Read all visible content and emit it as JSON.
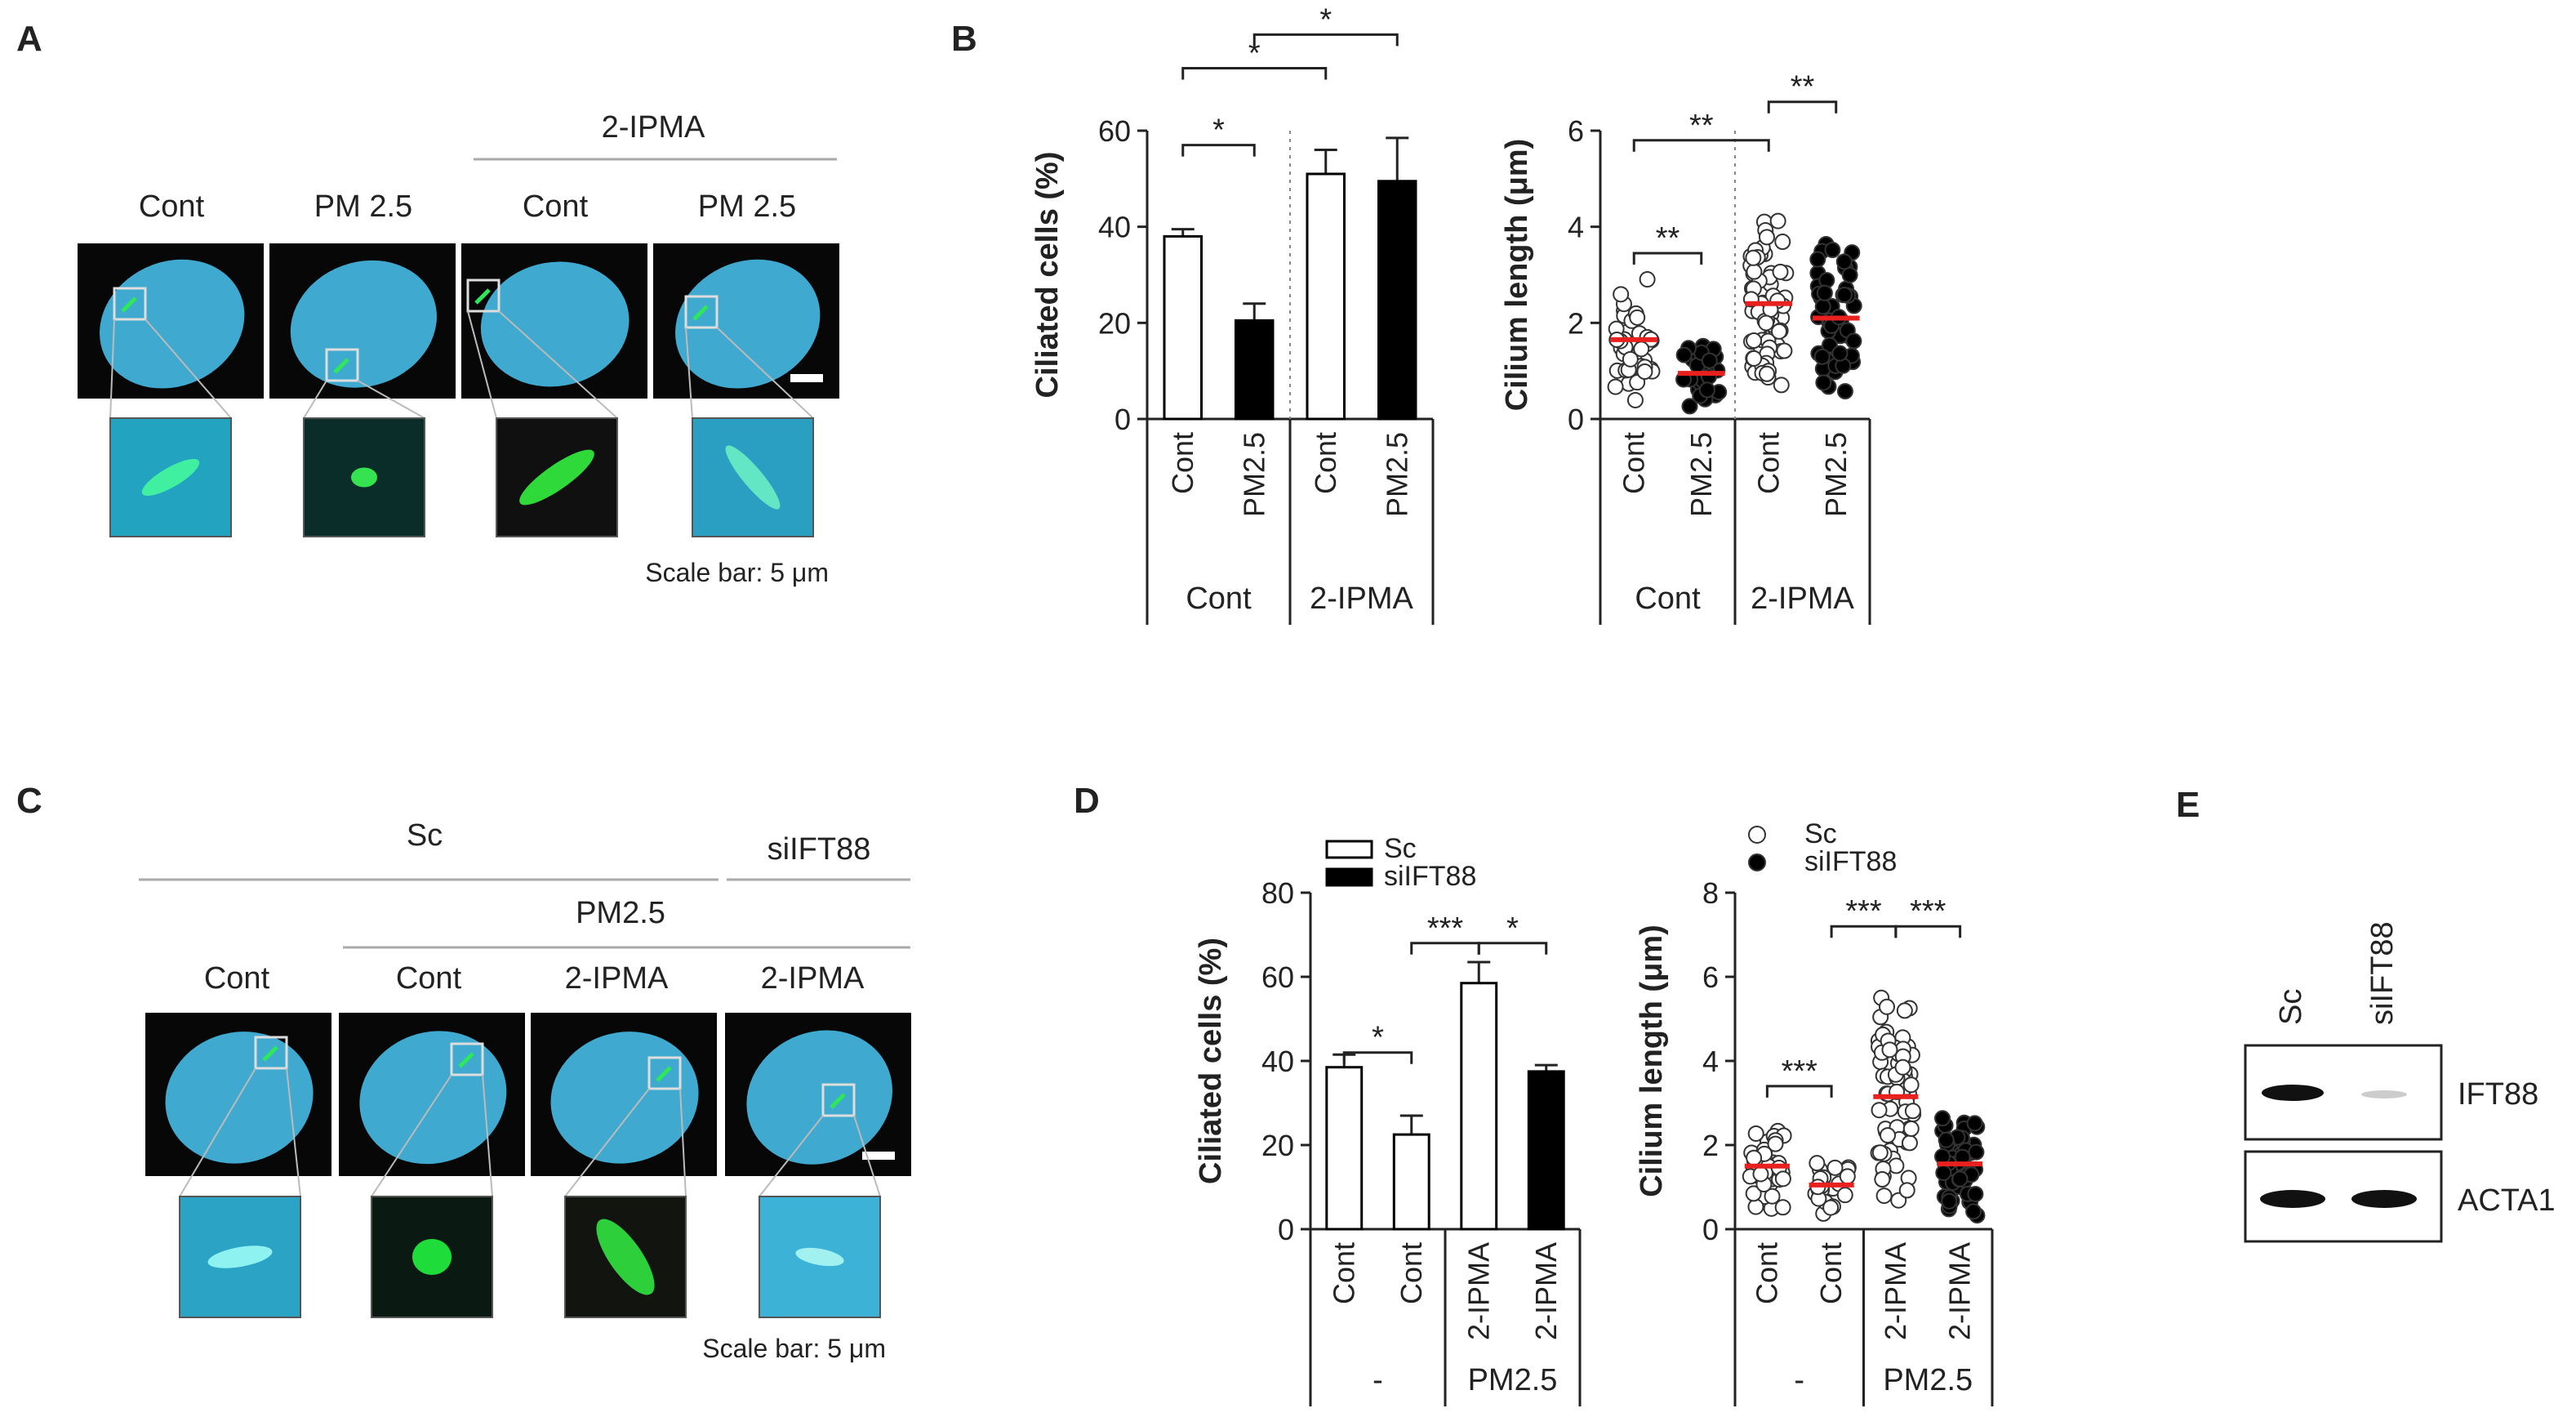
{
  "panels": {
    "A": {
      "label": "A",
      "group_header": "2-IPMA",
      "columns": [
        "Cont",
        "PM 2.5",
        "Cont",
        "PM 2.5"
      ],
      "scale_bar": "Scale bar: 5 μm"
    },
    "C": {
      "label": "C",
      "top_headers": [
        "Sc",
        "siIFT88"
      ],
      "sub_header": "PM2.5",
      "columns": [
        "Cont",
        "Cont",
        "2-IPMA",
        "2-IPMA"
      ],
      "scale_bar": "Scale bar: 5 μm"
    },
    "B": {
      "label": "B"
    },
    "D": {
      "label": "D"
    },
    "E": {
      "label": "E",
      "lanes": [
        "Sc",
        "siIFT88"
      ],
      "bands": [
        "IFT88",
        "ACTA1"
      ]
    }
  },
  "colors": {
    "nucleus": "#3fa9d0",
    "cilium": "#2ee85a",
    "mean_line": "#e8201e",
    "bar_black": "#000000",
    "bar_white": "#ffffff"
  },
  "chart_data": [
    {
      "id": "B1",
      "type": "bar",
      "ylabel": "Ciliated cells (%)",
      "ylim": [
        0,
        60
      ],
      "yticks": [
        0,
        20,
        40,
        60
      ],
      "categories": [
        "Cont",
        "PM2.5",
        "Cont",
        "PM2.5"
      ],
      "groups": [
        "Cont",
        "2-IPMA"
      ],
      "values": [
        38,
        20.5,
        51,
        49.5
      ],
      "errors": [
        1.5,
        3.5,
        5,
        9
      ],
      "fills": [
        "white",
        "black",
        "white",
        "black"
      ],
      "significance": [
        "*",
        "*",
        "*"
      ]
    },
    {
      "id": "B2",
      "type": "scatter",
      "ylabel": "Cilium length (μm)",
      "ylim": [
        0,
        6
      ],
      "yticks": [
        0,
        2,
        4,
        6
      ],
      "categories": [
        "Cont",
        "PM2.5",
        "Cont",
        "PM2.5"
      ],
      "groups": [
        "Cont",
        "2-IPMA"
      ],
      "means": [
        1.65,
        0.95,
        2.4,
        2.1
      ],
      "fills": [
        "open",
        "filled",
        "open",
        "filled"
      ],
      "significance": [
        "**",
        "**",
        "**"
      ]
    },
    {
      "id": "D1",
      "type": "bar",
      "ylabel": "Ciliated cells (%)",
      "ylim": [
        0,
        80
      ],
      "yticks": [
        0,
        20,
        40,
        60,
        80
      ],
      "categories": [
        "Cont",
        "Cont",
        "2-IPMA",
        "2-IPMA"
      ],
      "groups": [
        "-",
        "PM2.5"
      ],
      "values": [
        38.5,
        22.5,
        58.5,
        37.5
      ],
      "errors": [
        3,
        4.5,
        5,
        1.5
      ],
      "fills": [
        "white",
        "white",
        "white",
        "black"
      ],
      "legend": [
        "Sc",
        "siIFT88"
      ],
      "significance": [
        "*",
        "***",
        "*"
      ]
    },
    {
      "id": "D2",
      "type": "scatter",
      "ylabel": "Cilium length (μm)",
      "ylim": [
        0,
        8
      ],
      "yticks": [
        0,
        2,
        4,
        6,
        8
      ],
      "categories": [
        "Cont",
        "Cont",
        "2-IPMA",
        "2-IPMA"
      ],
      "groups": [
        "-",
        "PM2.5"
      ],
      "means": [
        1.5,
        1.05,
        3.15,
        1.55
      ],
      "fills": [
        "open",
        "open",
        "open",
        "filled"
      ],
      "legend": [
        "Sc",
        "siIFT88"
      ],
      "significance": [
        "***",
        "***",
        "***"
      ]
    }
  ]
}
